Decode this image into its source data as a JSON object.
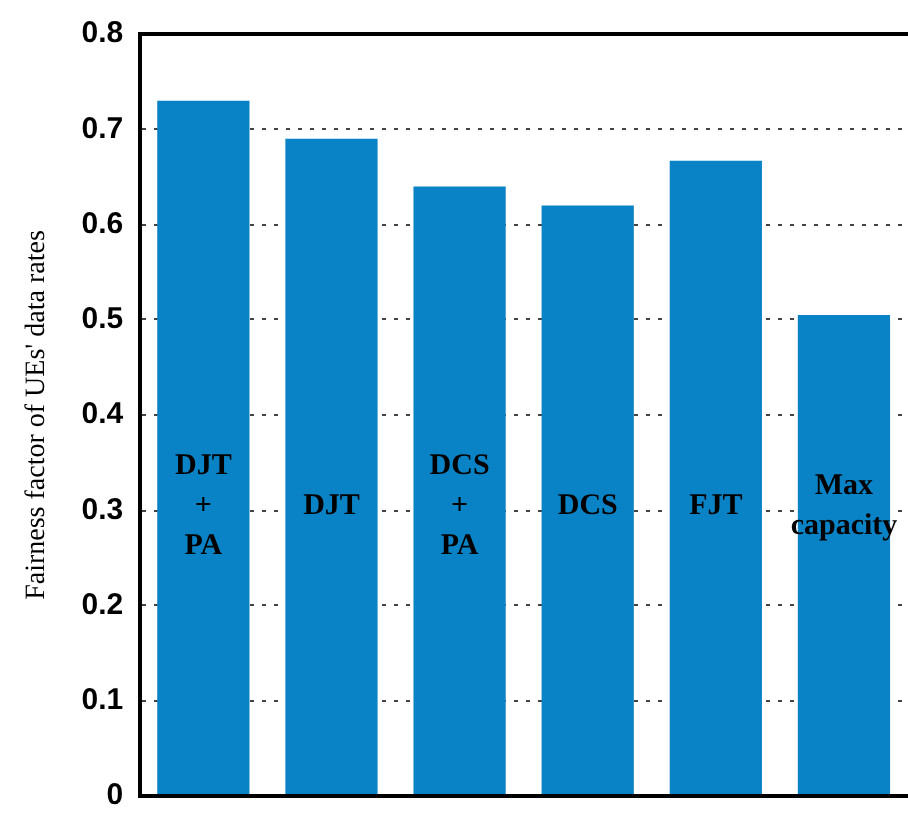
{
  "chart_data": {
    "type": "bar",
    "ylabel": "Fairness factor of UEs' data rates",
    "categories": [
      "DJT + PA",
      "DJT",
      "DCS + PA",
      "DCS",
      "FJT",
      "Max capacity"
    ],
    "values": [
      0.73,
      0.69,
      0.64,
      0.62,
      0.667,
      0.505
    ],
    "color": "#0a83c6",
    "ylim": [
      0,
      0.8
    ],
    "yticks": [
      0,
      0.1,
      0.2,
      0.3,
      0.4,
      0.5,
      0.6,
      0.7,
      0.8
    ],
    "grid": "y",
    "legend": false
  }
}
